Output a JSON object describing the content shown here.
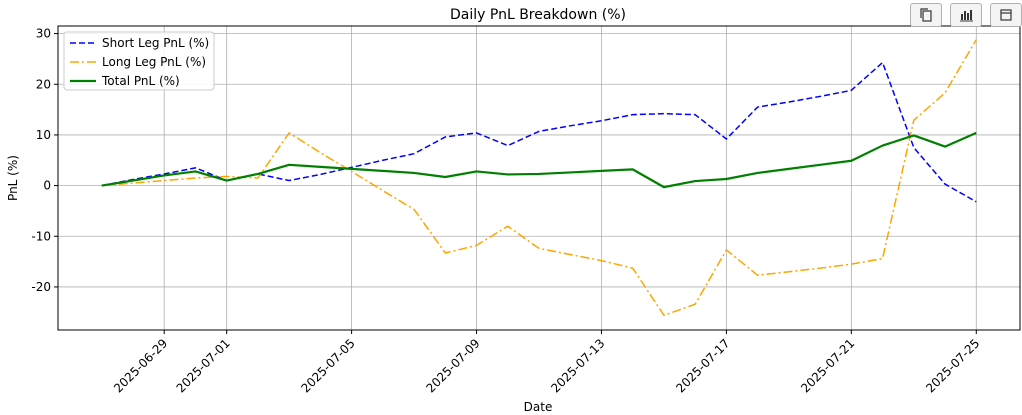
{
  "chart_data": {
    "type": "line",
    "title": "Daily PnL Breakdown (%)",
    "xlabel": "Date",
    "ylabel": "PnL (%)",
    "x": [
      "2025-06-27",
      "2025-06-28",
      "2025-06-29",
      "2025-06-30",
      "2025-07-01",
      "2025-07-02",
      "2025-07-03",
      "2025-07-04",
      "2025-07-05",
      "2025-07-06",
      "2025-07-07",
      "2025-07-08",
      "2025-07-09",
      "2025-07-10",
      "2025-07-11",
      "2025-07-12",
      "2025-07-13",
      "2025-07-14",
      "2025-07-15",
      "2025-07-16",
      "2025-07-17",
      "2025-07-18",
      "2025-07-19",
      "2025-07-20",
      "2025-07-21",
      "2025-07-22",
      "2025-07-23",
      "2025-07-24",
      "2025-07-25"
    ],
    "x_ticks": [
      "2025-06-29",
      "2025-07-01",
      "2025-07-05",
      "2025-07-09",
      "2025-07-13",
      "2025-07-17",
      "2025-07-21",
      "2025-07-25"
    ],
    "y_ticks": [
      -20,
      -10,
      0,
      10,
      20,
      30
    ],
    "ylim": [
      -28.5,
      31.5
    ],
    "xlim": [
      "2025-06-25.6",
      "2025-07-26.4"
    ],
    "grid": true,
    "legend_position": "top-left",
    "series": [
      {
        "name": "Short Leg PnL (%)",
        "color": "#0000ff",
        "style": "dashed",
        "values": [
          0,
          1.2,
          2.3,
          3.5,
          1.0,
          2.3,
          1.0,
          2.2,
          3.6,
          5.0,
          6.3,
          9.6,
          10.4,
          7.9,
          10.7,
          11.8,
          12.8,
          14.0,
          14.2,
          14.0,
          9.2,
          15.5,
          16.5,
          17.6,
          18.8,
          24.3,
          7.5,
          0.3,
          -3.2
        ]
      },
      {
        "name": "Long Leg PnL (%)",
        "color": "#ffa500",
        "style": "dashdot",
        "values": [
          0,
          0.5,
          1.0,
          1.5,
          1.8,
          1.5,
          10.4,
          6.5,
          2.8,
          -1.0,
          -4.7,
          -13.3,
          -11.8,
          -8.0,
          -12.4,
          -13.6,
          -14.8,
          -16.3,
          -25.6,
          -23.4,
          -12.7,
          -17.7,
          -17.0,
          -16.3,
          -15.5,
          -14.4,
          12.9,
          18.3,
          28.8
        ]
      },
      {
        "name": "Total PnL (%)",
        "color": "#008000",
        "style": "solid",
        "values": [
          0,
          1.0,
          2.0,
          2.8,
          1.0,
          2.3,
          4.1,
          3.7,
          3.3,
          2.9,
          2.5,
          1.7,
          2.8,
          2.2,
          2.3,
          2.6,
          2.9,
          3.2,
          -0.3,
          0.9,
          1.3,
          2.5,
          3.3,
          4.1,
          4.9,
          7.9,
          9.9,
          7.7,
          10.4
        ]
      }
    ]
  },
  "toolbar": {
    "copy_icon": "copy-icon",
    "chart_icon": "bar-chart-icon",
    "third_icon": "window-icon"
  }
}
